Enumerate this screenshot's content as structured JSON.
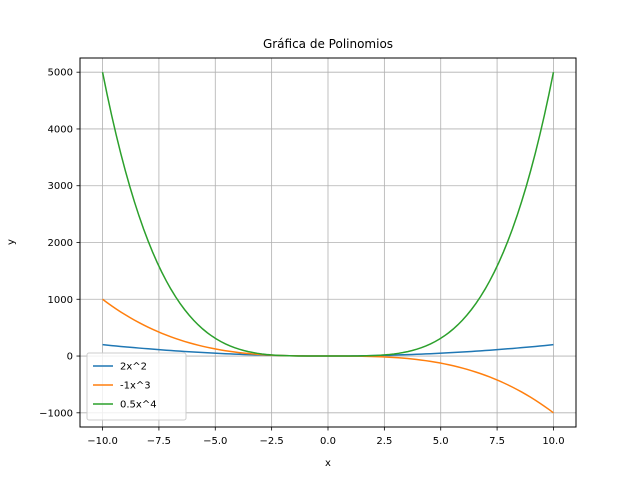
{
  "chart_data": {
    "type": "line",
    "title": "Gráfica de Polinomios",
    "xlabel": "x",
    "ylabel": "y",
    "xlim": [
      -11,
      11
    ],
    "ylim": [
      -1250,
      5250
    ],
    "x_ticks": [
      -10.0,
      -7.5,
      -5.0,
      -2.5,
      0.0,
      2.5,
      5.0,
      7.5,
      10.0
    ],
    "x_tick_labels": [
      "−10.0",
      "−7.5",
      "−5.0",
      "−2.5",
      "0.0",
      "2.5",
      "5.0",
      "7.5",
      "10.0"
    ],
    "y_ticks": [
      -1000,
      0,
      1000,
      2000,
      3000,
      4000,
      5000
    ],
    "y_tick_labels": [
      "−1000",
      "0",
      "1000",
      "2000",
      "3000",
      "4000",
      "5000"
    ],
    "grid": true,
    "legend_position": "lower-left",
    "x_range": [
      -10,
      10
    ],
    "series": [
      {
        "name": "2x^2",
        "color": "#1f77b4",
        "coefficient": 2,
        "power": 2
      },
      {
        "name": "-1x^3",
        "color": "#ff7f0e",
        "coefficient": -1,
        "power": 3
      },
      {
        "name": "0.5x^4",
        "color": "#2ca02c",
        "coefficient": 0.5,
        "power": 4
      }
    ]
  }
}
